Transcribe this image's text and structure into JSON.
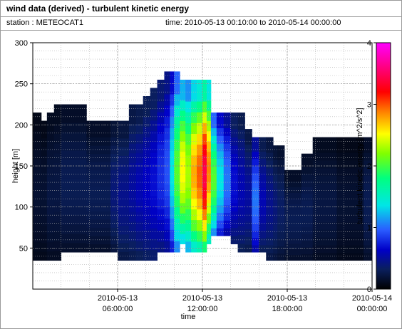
{
  "header": {
    "title": "wind data (derived) - turbulent kinetic energy",
    "station": "station : METEOCAT1",
    "time_range": "time: 2010-05-13 00:10:00 to 2010-05-14 00:00:00"
  },
  "chart_data": {
    "type": "heatmap",
    "title": "wind data (derived) - turbulent kinetic energy",
    "xlabel": "time",
    "ylabel": "height [m]",
    "colorbar_label": "turbulent kinetic energy [m^2/s^2]",
    "x_ticks": [
      {
        "hour": 6,
        "line1": "2010-05-13",
        "line2": "06:00:00"
      },
      {
        "hour": 12,
        "line1": "2010-05-13",
        "line2": "12:00:00"
      },
      {
        "hour": 18,
        "line1": "2010-05-13",
        "line2": "18:00:00"
      },
      {
        "hour": 24,
        "line1": "2010-05-14",
        "line2": "00:00:00"
      }
    ],
    "xlim_hours": [
      0,
      24
    ],
    "ylim": [
      0,
      300
    ],
    "y_ticks": [
      50,
      100,
      150,
      200,
      250,
      300
    ],
    "colorbar_ticks": [
      0,
      1,
      2,
      3,
      4
    ],
    "clim": [
      0,
      4
    ],
    "grid": true,
    "columns": [
      {
        "t0": 0.0,
        "t1": 0.6,
        "bottom": 35,
        "top": 215,
        "tke": 0.15
      },
      {
        "t0": 0.6,
        "t1": 1.0,
        "bottom": 35,
        "top": 205,
        "tke": 0.15
      },
      {
        "t0": 1.0,
        "t1": 1.5,
        "bottom": 35,
        "top": 215,
        "tke": 0.2
      },
      {
        "t0": 1.5,
        "t1": 2.0,
        "bottom": 35,
        "top": 225,
        "tke": 0.2
      },
      {
        "t0": 2.0,
        "t1": 3.8,
        "bottom": 45,
        "top": 225,
        "tke": 0.25
      },
      {
        "t0": 3.8,
        "t1": 5.5,
        "bottom": 45,
        "top": 205,
        "tke": 0.25
      },
      {
        "t0": 5.5,
        "t1": 6.0,
        "bottom": 45,
        "top": 205,
        "tke": 0.35
      },
      {
        "t0": 6.0,
        "t1": 6.8,
        "bottom": 35,
        "top": 205,
        "tke": 0.4
      },
      {
        "t0": 6.8,
        "t1": 7.3,
        "bottom": 35,
        "top": 225,
        "tke": 0.45
      },
      {
        "t0": 7.3,
        "t1": 7.8,
        "bottom": 35,
        "top": 225,
        "tke": 0.5
      },
      {
        "t0": 7.8,
        "t1": 8.3,
        "bottom": 35,
        "top": 235,
        "tke": 0.55
      },
      {
        "t0": 8.3,
        "t1": 8.8,
        "bottom": 35,
        "top": 245,
        "tke": 0.6
      },
      {
        "t0": 8.8,
        "t1": 9.3,
        "bottom": 45,
        "top": 255,
        "tke": 0.7
      },
      {
        "t0": 9.3,
        "t1": 9.7,
        "bottom": 45,
        "top": 265,
        "tke": 0.8
      },
      {
        "t0": 9.7,
        "t1": 10.0,
        "bottom": 45,
        "top": 265,
        "tke": 1.2
      },
      {
        "t0": 10.0,
        "t1": 10.4,
        "bottom": 45,
        "top": 265,
        "tke": 1.8
      },
      {
        "t0": 10.4,
        "t1": 10.8,
        "bottom": 55,
        "top": 255,
        "tke": 2.2
      },
      {
        "t0": 10.8,
        "t1": 11.2,
        "bottom": 45,
        "top": 255,
        "tke": 2.0
      },
      {
        "t0": 11.2,
        "t1": 11.6,
        "bottom": 45,
        "top": 255,
        "tke": 2.4
      },
      {
        "t0": 11.6,
        "t1": 12.0,
        "bottom": 45,
        "top": 255,
        "tke": 2.6
      },
      {
        "t0": 12.0,
        "t1": 12.3,
        "bottom": 45,
        "top": 255,
        "tke": 3.0
      },
      {
        "t0": 12.3,
        "t1": 12.6,
        "bottom": 55,
        "top": 255,
        "tke": 2.5
      },
      {
        "t0": 12.6,
        "t1": 13.0,
        "bottom": 65,
        "top": 215,
        "tke": 1.8
      },
      {
        "t0": 13.0,
        "t1": 13.5,
        "bottom": 65,
        "top": 215,
        "tke": 1.2
      },
      {
        "t0": 13.5,
        "t1": 14.0,
        "bottom": 65,
        "top": 215,
        "tke": 0.9
      },
      {
        "t0": 14.0,
        "t1": 14.5,
        "bottom": 55,
        "top": 215,
        "tke": 0.6
      },
      {
        "t0": 14.5,
        "t1": 15.0,
        "bottom": 45,
        "top": 215,
        "tke": 0.5
      },
      {
        "t0": 15.0,
        "t1": 15.5,
        "bottom": 45,
        "top": 195,
        "tke": 0.45
      },
      {
        "t0": 15.5,
        "t1": 16.0,
        "bottom": 45,
        "top": 185,
        "tke": 0.9
      },
      {
        "t0": 16.0,
        "t1": 16.5,
        "bottom": 45,
        "top": 185,
        "tke": 0.5
      },
      {
        "t0": 16.5,
        "t1": 17.0,
        "bottom": 35,
        "top": 185,
        "tke": 0.4
      },
      {
        "t0": 17.0,
        "t1": 17.3,
        "bottom": 35,
        "top": 175,
        "tke": 0.35
      },
      {
        "t0": 17.3,
        "t1": 17.8,
        "bottom": 35,
        "top": 175,
        "tke": 0.3
      },
      {
        "t0": 17.8,
        "t1": 19.0,
        "bottom": 35,
        "top": 145,
        "tke": 0.25
      },
      {
        "t0": 19.0,
        "t1": 19.8,
        "bottom": 35,
        "top": 165,
        "tke": 0.25
      },
      {
        "t0": 19.8,
        "t1": 20.5,
        "bottom": 35,
        "top": 185,
        "tke": 0.2
      },
      {
        "t0": 20.5,
        "t1": 21.5,
        "bottom": 35,
        "top": 185,
        "tke": 0.2
      },
      {
        "t0": 21.5,
        "t1": 22.5,
        "bottom": 35,
        "top": 185,
        "tke": 0.15
      },
      {
        "t0": 22.5,
        "t1": 23.4,
        "bottom": 35,
        "top": 185,
        "tke": 0.15
      },
      {
        "t0": 23.4,
        "t1": 24.0,
        "bottom": 35,
        "top": 185,
        "tke": 0.25
      }
    ]
  }
}
